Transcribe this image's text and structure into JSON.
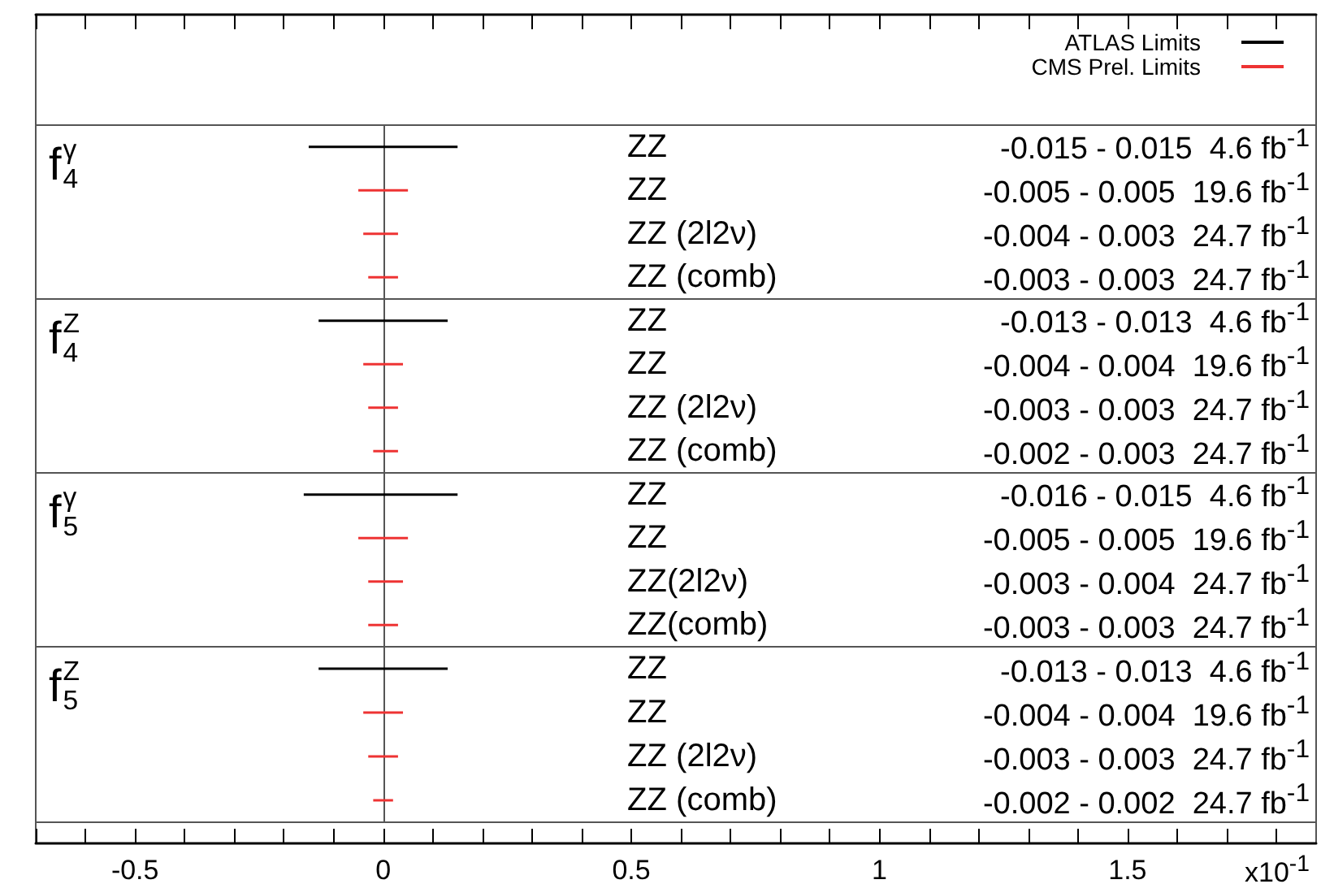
{
  "chart_data": [
    {
      "type": "bar",
      "orientation": "horizontal",
      "title": "f$_{4}$$^{γ}$",
      "categories": [
        "ZZ",
        "ZZ",
        "ZZ (2l2ν)",
        "ZZ (comb)"
      ],
      "series": [
        {
          "name": "ATLAS Limits",
          "color": "#000000",
          "base": [
            -0.15,
            null,
            null,
            null
          ],
          "values": [
            0.3,
            null,
            null,
            null
          ]
        },
        {
          "name": "CMS Prel. Limits",
          "color": "#ee3333",
          "base": [
            null,
            -0.05,
            -0.04,
            -0.03
          ],
          "values": [
            null,
            0.1,
            0.07,
            0.06
          ]
        }
      ],
      "value_labels": [
        "-0.015 - 0.015  4.6 fb$^{-1}$",
        "-0.005 - 0.005  19.6 fb$^{-1}$",
        "-0.004 - 0.003  24.7 fb$^{-1}$",
        "-0.003 - 0.003  24.7 fb$^{-1}$"
      ],
      "xlim": [
        -0.7,
        1.88
      ],
      "tick_labels": "y",
      "legend": "top right"
    },
    {
      "type": "bar",
      "orientation": "horizontal",
      "title": "f$_{4}$$^{Z}$",
      "categories": [
        "ZZ",
        "ZZ",
        "ZZ (2l2ν)",
        "ZZ (comb)"
      ],
      "series": [
        {
          "color": "#000000",
          "base": [
            -0.13,
            null,
            null,
            null
          ],
          "values": [
            0.26,
            null,
            null,
            null
          ]
        },
        {
          "color": "#ee3333",
          "base": [
            null,
            -0.04,
            -0.03,
            -0.02
          ],
          "values": [
            null,
            0.08,
            0.06,
            0.05
          ]
        }
      ],
      "value_labels": [
        "-0.013 - 0.013  4.6 fb$^{-1}$",
        "-0.004 - 0.004  19.6 fb$^{-1}$",
        "-0.003 - 0.003  24.7 fb$^{-1}$",
        "-0.002 - 0.003  24.7 fb$^{-1}$"
      ],
      "xlim": [
        -0.7,
        1.88
      ],
      "tick_labels": "y"
    },
    {
      "type": "bar",
      "orientation": "horizontal",
      "title": "f$_{5}$$^{γ}$",
      "categories": [
        "ZZ",
        "ZZ",
        "ZZ(2l2ν)",
        "ZZ(comb)"
      ],
      "series": [
        {
          "color": "#000000",
          "base": [
            -0.16,
            null,
            null,
            null
          ],
          "values": [
            0.31,
            null,
            null,
            null
          ]
        },
        {
          "color": "#ee3333",
          "base": [
            null,
            -0.05,
            -0.03,
            -0.03
          ],
          "values": [
            null,
            0.1,
            0.07,
            0.06
          ]
        }
      ],
      "value_labels": [
        "-0.016 - 0.015  4.6 fb$^{-1}$",
        "-0.005 - 0.005  19.6 fb$^{-1}$",
        "-0.003 - 0.004  24.7 fb$^{-1}$",
        "-0.003 - 0.003  24.7 fb$^{-1}$"
      ],
      "xlim": [
        -0.7,
        1.88
      ],
      "tick_labels": "y"
    },
    {
      "type": "bar",
      "orientation": "horizontal",
      "title": "f$_{5}$$^{Z}$",
      "categories": [
        "ZZ",
        "ZZ",
        "ZZ (2l2ν)",
        "ZZ (comb)"
      ],
      "series": [
        {
          "color": "#000000",
          "base": [
            -0.13,
            null,
            null,
            null
          ],
          "values": [
            0.26,
            null,
            null,
            null
          ]
        },
        {
          "color": "#ee3333",
          "base": [
            null,
            -0.04,
            -0.03,
            -0.02
          ],
          "values": [
            null,
            0.08,
            0.06,
            0.04
          ]
        }
      ],
      "value_labels": [
        "-0.013 - 0.013  4.6 fb$^{-1}$",
        "-0.004 - 0.004  19.6 fb$^{-1}$",
        "-0.003 - 0.003  24.7 fb$^{-1}$",
        "-0.002 - 0.002  24.7 fb$^{-1}$"
      ],
      "xlim": [
        -0.7,
        1.88
      ],
      "xticks": [
        {
          "value": -0.7,
          "label": null
        },
        {
          "value": -0.6,
          "label": null
        },
        -0.5,
        {
          "value": -0.4,
          "label": null
        },
        {
          "value": -0.3,
          "label": null
        },
        {
          "value": -0.2,
          "label": null
        },
        {
          "value": -0.1,
          "label": null
        },
        0,
        {
          "value": 0.1,
          "label": null
        },
        {
          "value": 0.2,
          "label": null
        },
        {
          "value": 0.3,
          "label": null
        },
        {
          "value": 0.4,
          "label": null
        },
        0.5,
        {
          "value": 0.6,
          "label": null
        },
        {
          "value": 0.7,
          "label": null
        },
        {
          "value": 0.8,
          "label": null
        },
        {
          "value": 0.9,
          "label": null
        },
        1,
        {
          "value": 1.1,
          "label": null
        },
        {
          "value": 1.2,
          "label": null
        },
        {
          "value": 1.3,
          "label": null
        },
        {
          "value": 1.4,
          "label": null
        },
        1.5,
        {
          "value": 1.6,
          "label": null
        },
        {
          "value": 1.7,
          "label": null
        },
        {
          "value": 1.8,
          "label": null
        }
      ],
      "xlabel": "x10$^{-1}$"
    }
  ]
}
